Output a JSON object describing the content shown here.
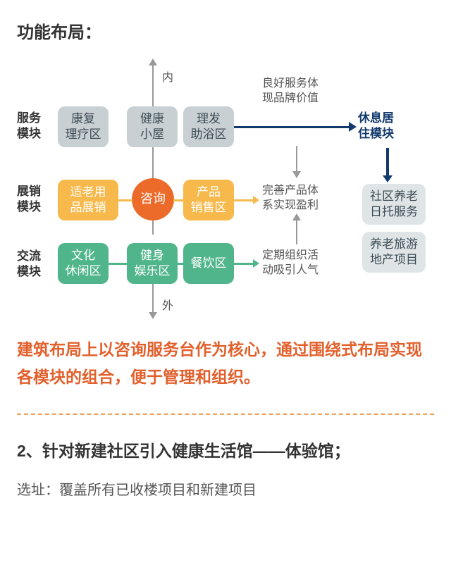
{
  "title": "功能布局：",
  "axis": {
    "top": "内",
    "bottom": "外"
  },
  "rowLabels": [
    "服务\n模块",
    "展销\n模块",
    "交流\n模块"
  ],
  "rightLabel": "休息居\n住模块",
  "grid": {
    "r1": [
      "康复\n理疗区",
      "健康\n小屋",
      "理发\n助浴区"
    ],
    "r2": [
      "适老用\n品展销",
      "咨询",
      "产品\n销售区"
    ],
    "r3": [
      "文化\n休闲区",
      "健身\n娱乐区",
      "餐饮区"
    ]
  },
  "notes": [
    "良好服务体\n现品牌价值",
    "完善产品体\n系实现盈利",
    "定期组织活\n动吸引人气"
  ],
  "right": [
    "社区养老\n日托服务",
    "养老旅游\n地产项目"
  ],
  "colors": {
    "gray": "#c9d0d4",
    "grayText": "#3b4a52",
    "orange": "#f7b94b",
    "orangeText": "#8a5a00",
    "orangeCircle": "#ec6a2a",
    "green": "#51b58b",
    "greenText": "#fff",
    "lightGray": "#dfe5e7",
    "navy": "#123a6b",
    "descColor": "#e2602c"
  },
  "desc": "建筑布局上以咨询服务台作为核心，通过围绕式布局实现各模块的组合，便于管理和组织。",
  "section2": {
    "heading": "2、针对新建社区引入健康生活馆——体验馆；",
    "sub": "选址：覆盖所有已收楼项目和新建项目"
  }
}
